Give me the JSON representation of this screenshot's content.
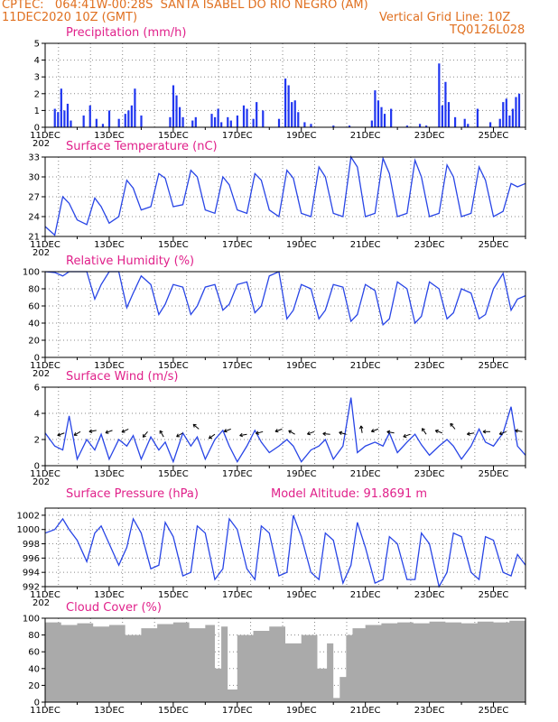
{
  "header": {
    "line1": "CPTEC:   064:41W-00:28S  SANTA ISABEL DO RIO NEGRO (AM)",
    "line2_left": "11DEC2020 10Z (GMT)",
    "line2_right": "Vertical Grid Line: 10Z",
    "line3_right": "TQ0126L028",
    "cut_label": "202"
  },
  "x_tick_labels": [
    "11DEC",
    "13DEC",
    "15DEC",
    "17DEC",
    "19DEC",
    "21DEC",
    "23DEC",
    "25DEC"
  ],
  "colors": {
    "line": "#2845e6",
    "bar": "#2036f0",
    "cloud": "#aaaaaa",
    "title": "#e0208a",
    "header": "#e07020"
  },
  "chart_data": [
    {
      "type": "bar",
      "title": "Precipitation (mm/h)",
      "ylim": [
        0,
        5
      ],
      "yticks": [
        0,
        1,
        2,
        3,
        4,
        5
      ],
      "x_range_days": [
        11,
        26
      ],
      "series": [
        {
          "x": [
            11.3,
            11.4,
            11.5,
            11.6,
            11.7,
            11.8,
            12.2,
            12.4,
            12.6,
            12.8,
            13.0,
            13.3,
            13.5,
            13.6,
            13.7,
            13.8,
            14.0,
            14.9,
            15.0,
            15.1,
            15.2,
            15.3,
            15.6,
            15.7,
            16.2,
            16.3,
            16.4,
            16.5,
            16.7,
            16.8,
            17.0,
            17.2,
            17.3,
            17.5,
            17.6,
            17.8,
            18.3,
            18.5,
            18.6,
            18.7,
            18.8,
            18.9,
            19.1,
            19.3,
            20.0,
            20.5,
            21.2,
            21.3,
            21.4,
            21.5,
            21.6,
            21.8,
            22.3,
            22.7,
            22.9,
            23.3,
            23.4,
            23.5,
            23.6,
            23.8,
            24.1,
            24.2,
            24.5,
            24.9,
            25.2,
            25.3,
            25.4,
            25.5,
            25.6,
            25.7,
            25.8
          ],
          "values": [
            1.1,
            0.9,
            2.3,
            1.0,
            1.4,
            0.4,
            0.7,
            1.3,
            0.5,
            0.2,
            1.0,
            0.5,
            0.8,
            1.0,
            1.3,
            2.3,
            0.7,
            0.6,
            2.5,
            1.9,
            1.2,
            0.6,
            0.4,
            0.6,
            0.8,
            0.6,
            1.1,
            0.3,
            0.6,
            0.4,
            0.7,
            1.3,
            1.1,
            0.5,
            1.5,
            1.0,
            0.5,
            2.9,
            2.5,
            1.5,
            1.6,
            0.9,
            0.3,
            0.2,
            0.1,
            0.1,
            0.4,
            2.2,
            1.6,
            1.2,
            0.8,
            1.1,
            0.1,
            0.2,
            0.1,
            3.8,
            1.3,
            2.7,
            1.5,
            0.6,
            0.5,
            0.2,
            1.1,
            0.3,
            0.5,
            1.5,
            1.7,
            0.7,
            1.1,
            1.8,
            2.0
          ]
        }
      ]
    },
    {
      "type": "line",
      "title": "Surface Temperature (nC)",
      "ylim": [
        21,
        33
      ],
      "yticks": [
        21,
        24,
        27,
        30,
        33
      ],
      "series": [
        {
          "x": [
            11.0,
            11.3,
            11.55,
            11.75,
            12.0,
            12.3,
            12.55,
            12.75,
            13.0,
            13.3,
            13.55,
            13.75,
            14.0,
            14.3,
            14.55,
            14.75,
            15.0,
            15.3,
            15.55,
            15.75,
            16.0,
            16.3,
            16.55,
            16.75,
            17.0,
            17.3,
            17.55,
            17.75,
            18.0,
            18.3,
            18.55,
            18.75,
            19.0,
            19.3,
            19.55,
            19.75,
            20.0,
            20.3,
            20.55,
            20.75,
            21.0,
            21.3,
            21.55,
            21.75,
            22.0,
            22.3,
            22.55,
            22.75,
            23.0,
            23.3,
            23.55,
            23.75,
            24.0,
            24.3,
            24.55,
            24.75,
            25.0,
            25.3,
            25.55,
            25.75,
            26.0
          ],
          "values": [
            22.5,
            21.2,
            27.0,
            26.0,
            23.5,
            22.8,
            26.8,
            25.5,
            23.0,
            24.0,
            29.5,
            28.3,
            25.0,
            25.5,
            30.5,
            29.8,
            25.5,
            25.8,
            31.0,
            30.0,
            25.0,
            24.5,
            30.0,
            28.8,
            25.0,
            24.5,
            30.5,
            29.5,
            25.0,
            24.0,
            31.0,
            29.8,
            24.5,
            24.0,
            31.5,
            30.0,
            24.5,
            24.0,
            33.0,
            31.5,
            24.0,
            24.5,
            32.8,
            30.5,
            24.0,
            24.5,
            32.5,
            30.0,
            24.0,
            24.5,
            31.8,
            30.0,
            24.0,
            24.5,
            31.5,
            29.5,
            24.0,
            24.8,
            29.0,
            28.5,
            29.0
          ]
        }
      ]
    },
    {
      "type": "line",
      "title": "Relative Humidity (%)",
      "ylim": [
        0,
        100
      ],
      "yticks": [
        0,
        20,
        40,
        60,
        80,
        100
      ],
      "series": [
        {
          "x": [
            11.0,
            11.3,
            11.55,
            11.75,
            12.0,
            12.3,
            12.55,
            12.75,
            13.0,
            13.3,
            13.55,
            13.75,
            14.0,
            14.3,
            14.55,
            14.75,
            15.0,
            15.3,
            15.55,
            15.75,
            16.0,
            16.3,
            16.55,
            16.75,
            17.0,
            17.3,
            17.55,
            17.75,
            18.0,
            18.3,
            18.55,
            18.75,
            19.0,
            19.3,
            19.55,
            19.75,
            20.0,
            20.3,
            20.55,
            20.75,
            21.0,
            21.3,
            21.55,
            21.75,
            22.0,
            22.3,
            22.55,
            22.75,
            23.0,
            23.3,
            23.55,
            23.75,
            24.0,
            24.3,
            24.55,
            24.75,
            25.0,
            25.3,
            25.55,
            25.75,
            26.0
          ],
          "values": [
            100,
            99,
            95,
            100,
            100,
            100,
            68,
            85,
            100,
            100,
            58,
            75,
            95,
            85,
            50,
            62,
            85,
            82,
            50,
            60,
            82,
            85,
            55,
            62,
            85,
            88,
            52,
            60,
            95,
            100,
            45,
            55,
            85,
            80,
            45,
            55,
            85,
            82,
            42,
            50,
            85,
            78,
            38,
            45,
            88,
            80,
            40,
            48,
            88,
            80,
            45,
            52,
            80,
            75,
            45,
            50,
            80,
            98,
            55,
            68,
            72
          ]
        }
      ]
    },
    {
      "type": "line",
      "title": "Surface Wind (m/s)",
      "ylim": [
        0,
        6
      ],
      "yticks": [
        0,
        2,
        4,
        6
      ],
      "series": [
        {
          "x": [
            11.0,
            11.3,
            11.55,
            11.75,
            12.0,
            12.3,
            12.55,
            12.75,
            13.0,
            13.3,
            13.55,
            13.75,
            14.0,
            14.3,
            14.55,
            14.75,
            15.0,
            15.3,
            15.55,
            15.75,
            16.0,
            16.3,
            16.55,
            16.75,
            17.0,
            17.3,
            17.55,
            17.75,
            18.0,
            18.3,
            18.55,
            18.75,
            19.0,
            19.3,
            19.55,
            19.75,
            20.0,
            20.3,
            20.55,
            20.75,
            21.0,
            21.3,
            21.55,
            21.75,
            22.0,
            22.3,
            22.55,
            22.75,
            23.0,
            23.3,
            23.55,
            23.75,
            24.0,
            24.3,
            24.55,
            24.75,
            25.0,
            25.3,
            25.55,
            25.75,
            26.0
          ],
          "values": [
            2.5,
            1.5,
            1.2,
            3.8,
            0.5,
            2.0,
            1.2,
            2.4,
            0.5,
            2.0,
            1.5,
            2.3,
            0.5,
            2.2,
            1.2,
            1.8,
            0.3,
            2.5,
            1.5,
            2.2,
            0.5,
            2.0,
            2.7,
            1.5,
            0.3,
            1.5,
            2.7,
            1.8,
            1.0,
            1.5,
            2.0,
            1.5,
            0.3,
            1.2,
            1.5,
            2.0,
            0.5,
            1.5,
            5.2,
            1.0,
            1.5,
            1.8,
            1.5,
            2.5,
            1.0,
            1.8,
            2.4,
            1.6,
            0.8,
            1.5,
            2.0,
            1.5,
            0.5,
            1.5,
            2.8,
            1.8,
            1.5,
            2.5,
            4.5,
            1.5,
            0.8
          ]
        }
      ],
      "arrows_x": [
        11.6,
        12.1,
        12.6,
        13.1,
        13.6,
        14.2,
        14.7,
        15.3,
        15.8,
        16.3,
        16.8,
        17.3,
        17.8,
        18.4,
        18.8,
        19.4,
        19.9,
        20.4,
        20.9,
        21.4,
        21.9,
        22.4,
        22.9,
        23.4,
        23.8,
        24.4,
        24.9,
        25.4,
        25.9
      ],
      "arrows_y": [
        2.5,
        2.6,
        2.7,
        2.7,
        2.8,
        2.6,
        2.2,
        2.5,
        2.8,
        2.4,
        2.8,
        2.4,
        2.6,
        2.8,
        2.4,
        2.6,
        2.4,
        2.4,
        2.5,
        2.8,
        2.5,
        2.4,
        2.4,
        2.5,
        2.8,
        2.5,
        2.6,
        2.6,
        2.6
      ],
      "arrows_deg": [
        200,
        210,
        190,
        200,
        205,
        230,
        120,
        210,
        140,
        215,
        200,
        190,
        195,
        200,
        150,
        200,
        175,
        165,
        100,
        200,
        170,
        200,
        125,
        160,
        130,
        190,
        180,
        200,
        170
      ]
    },
    {
      "type": "line",
      "title": "Surface Pressure (hPa)",
      "subtitle": "Model Altitude: 91.8691 m",
      "ylim": [
        992,
        1003
      ],
      "yticks": [
        992,
        994,
        996,
        998,
        1000,
        1002
      ],
      "series": [
        {
          "x": [
            11.0,
            11.3,
            11.55,
            11.75,
            12.0,
            12.3,
            12.55,
            12.75,
            13.0,
            13.3,
            13.55,
            13.75,
            14.0,
            14.3,
            14.55,
            14.75,
            15.0,
            15.3,
            15.55,
            15.75,
            16.0,
            16.3,
            16.55,
            16.75,
            17.0,
            17.3,
            17.55,
            17.75,
            18.0,
            18.3,
            18.55,
            18.75,
            19.0,
            19.3,
            19.55,
            19.75,
            20.0,
            20.3,
            20.55,
            20.75,
            21.0,
            21.3,
            21.55,
            21.75,
            22.0,
            22.3,
            22.55,
            22.75,
            23.0,
            23.3,
            23.55,
            23.75,
            24.0,
            24.3,
            24.55,
            24.75,
            25.0,
            25.3,
            25.55,
            25.75,
            26.0
          ],
          "values": [
            999.5,
            1000.0,
            1001.5,
            1000.0,
            998.5,
            995.5,
            999.5,
            1000.5,
            998.0,
            995.0,
            997.5,
            1001.5,
            999.5,
            994.5,
            995.0,
            1001.0,
            999.0,
            993.5,
            994.0,
            1000.5,
            999.5,
            993.0,
            994.5,
            1001.5,
            1000.0,
            994.5,
            993.0,
            1000.5,
            999.5,
            993.5,
            994.0,
            1002.0,
            999.0,
            994.0,
            993.0,
            999.5,
            998.5,
            992.5,
            995.0,
            1001.0,
            997.5,
            992.5,
            993.0,
            999.0,
            998.0,
            993.0,
            993.0,
            999.5,
            998.0,
            992.0,
            994.0,
            999.5,
            999.0,
            994.0,
            993.0,
            999.0,
            998.5,
            994.0,
            993.5,
            996.5,
            995.0
          ]
        }
      ]
    },
    {
      "type": "area",
      "title": "Cloud Cover (%)",
      "ylim": [
        0,
        100
      ],
      "yticks": [
        0,
        20,
        40,
        60,
        80,
        100
      ],
      "series": [
        {
          "x": [
            11.0,
            11.5,
            12.0,
            12.5,
            13.0,
            13.5,
            14.0,
            14.5,
            15.0,
            15.5,
            16.0,
            16.3,
            16.5,
            16.7,
            17.0,
            17.5,
            18.0,
            18.5,
            19.0,
            19.5,
            19.8,
            20.0,
            20.2,
            20.4,
            20.6,
            21.0,
            21.5,
            22.0,
            22.5,
            23.0,
            23.5,
            24.0,
            24.5,
            25.0,
            25.5,
            26.0
          ],
          "values": [
            95,
            92,
            94,
            90,
            92,
            80,
            88,
            93,
            95,
            88,
            92,
            40,
            90,
            15,
            80,
            85,
            90,
            70,
            80,
            40,
            70,
            5,
            30,
            80,
            88,
            92,
            94,
            95,
            94,
            96,
            95,
            94,
            96,
            95,
            97,
            98
          ]
        }
      ]
    }
  ]
}
